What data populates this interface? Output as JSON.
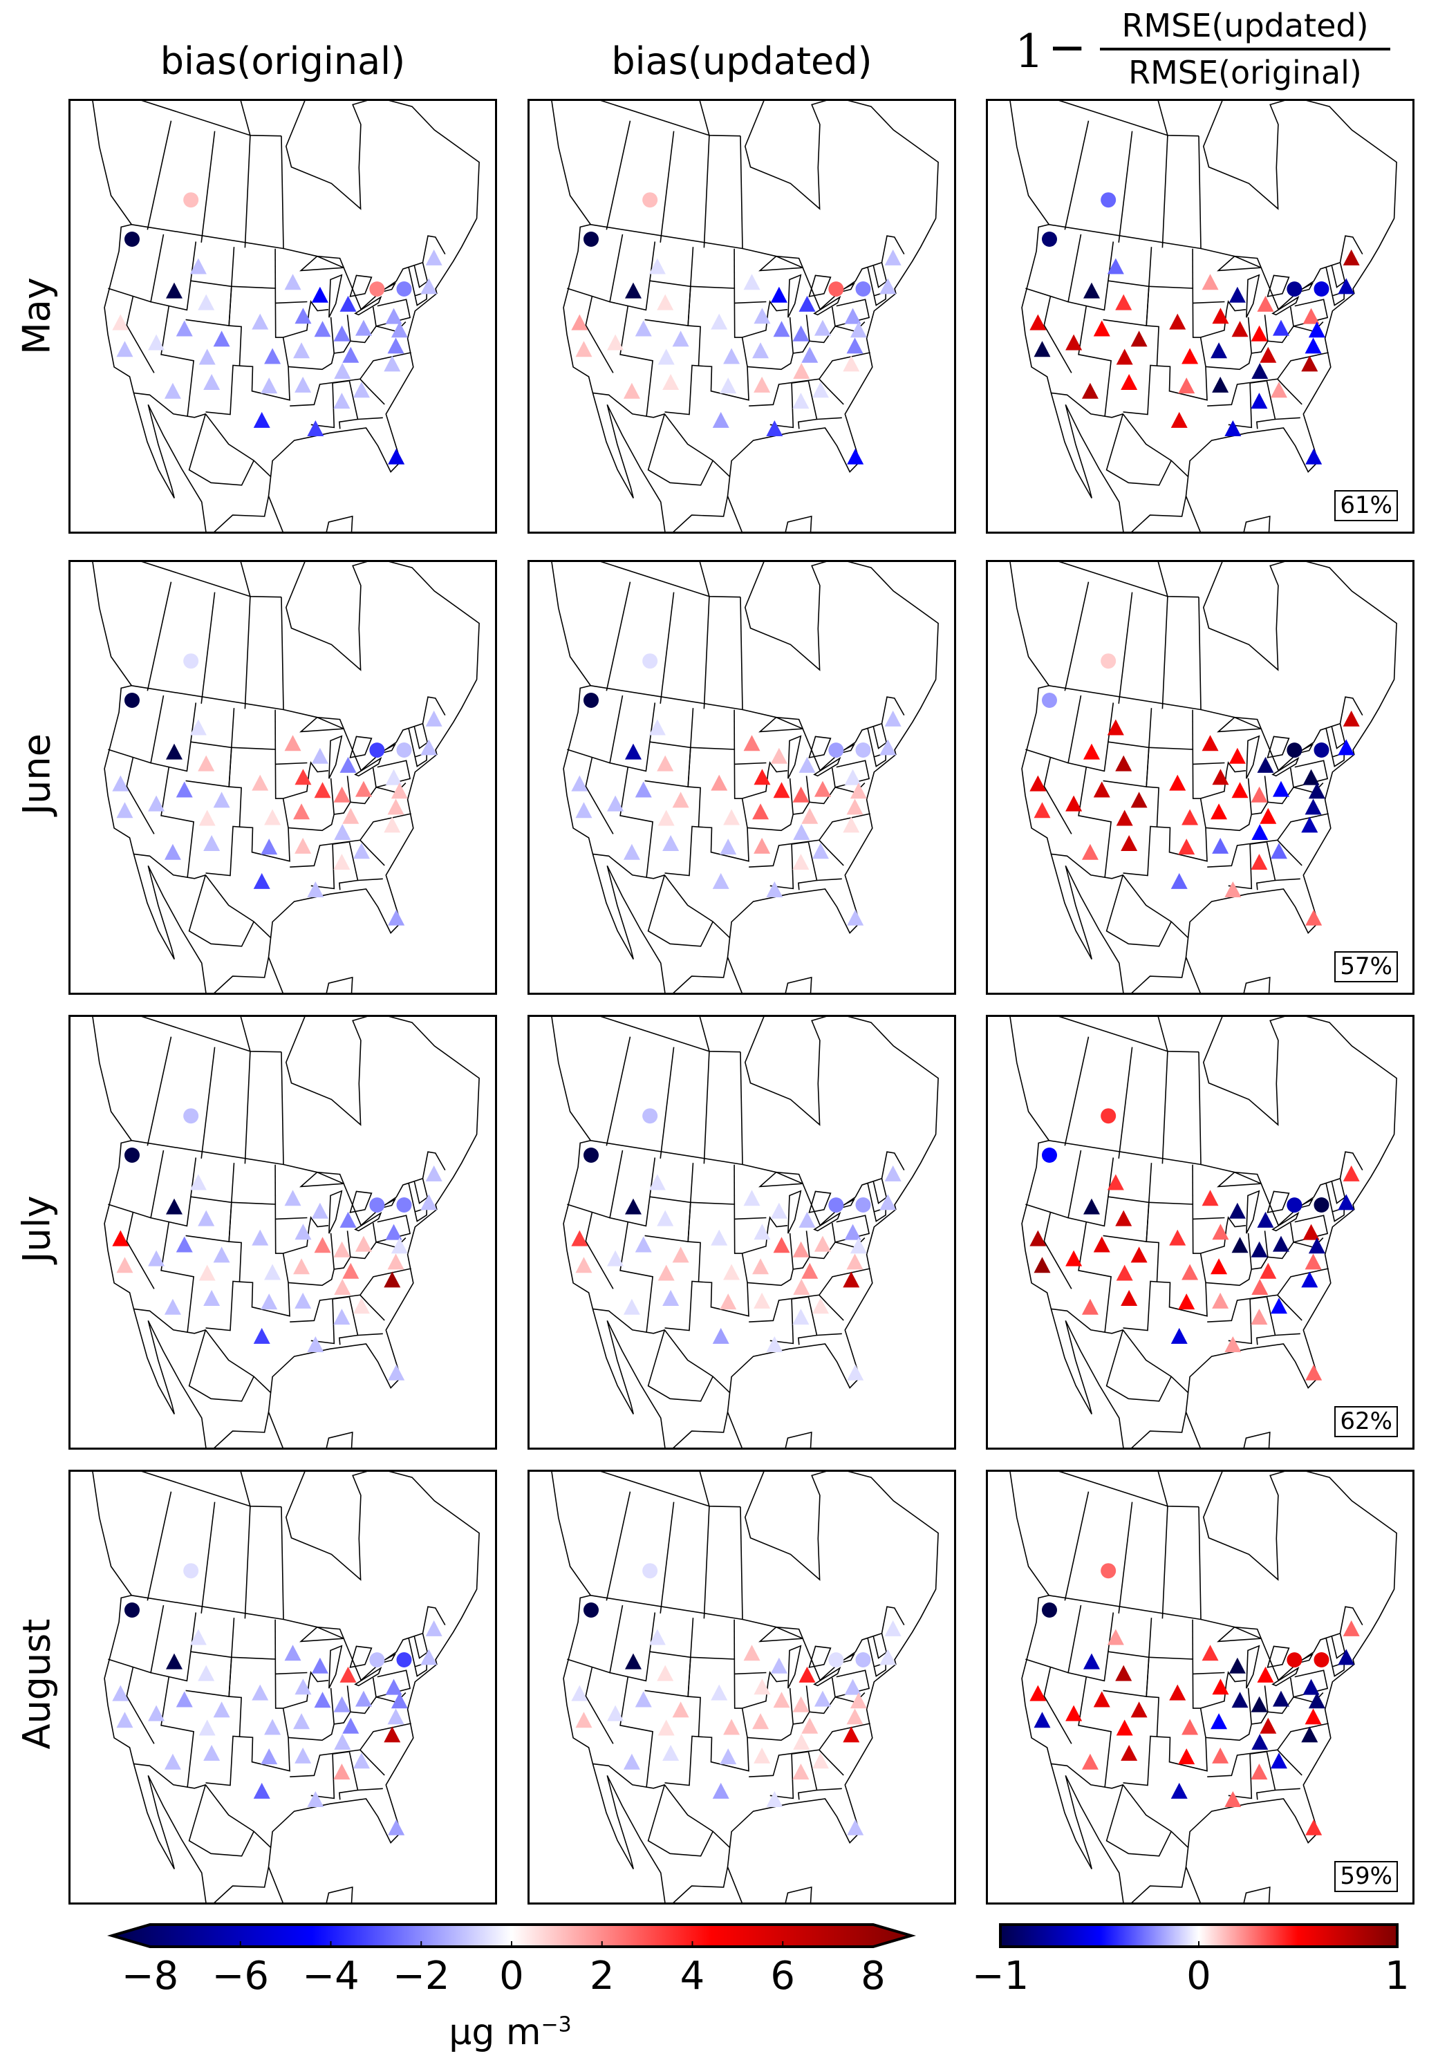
{
  "column_titles": {
    "col1": "bias(original)",
    "col2": "bias(updated)",
    "col3": {
      "prefix_one": "1",
      "minus": "−",
      "numerator": "RMSE(updated)",
      "denominator": "RMSE(original)"
    }
  },
  "row_labels": [
    "May",
    "June",
    "July",
    "August"
  ],
  "improvement_percent": [
    "61%",
    "57%",
    "62%",
    "59%"
  ],
  "colorbar_bias": {
    "range": [
      -8,
      8
    ],
    "extend": "both",
    "ticks": [
      "−8",
      "−6",
      "−4",
      "−2",
      "0",
      "2",
      "4",
      "6",
      "8"
    ],
    "unit_label": "μg m",
    "unit_exponent": "−3",
    "colormap": "seismic",
    "colors": [
      "#00004c",
      "#0000ff",
      "#ffffff",
      "#ff0000",
      "#800000"
    ]
  },
  "colorbar_rmse": {
    "range": [
      -1,
      1
    ],
    "ticks": [
      "−1",
      "0",
      "1"
    ],
    "colormap": "seismic",
    "colors": [
      "#00004c",
      "#0000ff",
      "#ffffff",
      "#ff0000",
      "#800000"
    ]
  },
  "chart_data": {
    "type": "scatter-map",
    "region": "North America",
    "stations": [
      {
        "lon": -122.3,
        "lat": 47.6,
        "marker": "circle"
      },
      {
        "lon": -113,
        "lat": 53,
        "marker": "circle"
      },
      {
        "lon": -113.5,
        "lat": 43.6,
        "marker": "triangle"
      },
      {
        "lon": -121,
        "lat": 39,
        "marker": "triangle"
      },
      {
        "lon": -119.5,
        "lat": 36.5,
        "marker": "triangle"
      },
      {
        "lon": -111,
        "lat": 40,
        "marker": "triangle"
      },
      {
        "lon": -115,
        "lat": 38,
        "marker": "triangle"
      },
      {
        "lon": -105,
        "lat": 39.5,
        "marker": "triangle"
      },
      {
        "lon": -107,
        "lat": 37.5,
        "marker": "triangle"
      },
      {
        "lon": -111.5,
        "lat": 33.5,
        "marker": "triangle"
      },
      {
        "lon": -106,
        "lat": 35,
        "marker": "triangle"
      },
      {
        "lon": -108,
        "lat": 43,
        "marker": "triangle"
      },
      {
        "lon": -110,
        "lat": 46.5,
        "marker": "triangle"
      },
      {
        "lon": -99,
        "lat": 41.5,
        "marker": "triangle"
      },
      {
        "lon": -97,
        "lat": 38,
        "marker": "triangle"
      },
      {
        "lon": -97.5,
        "lat": 35,
        "marker": "triangle"
      },
      {
        "lon": -98.5,
        "lat": 31.5,
        "marker": "triangle"
      },
      {
        "lon": -93.5,
        "lat": 45.5,
        "marker": "triangle"
      },
      {
        "lon": -92,
        "lat": 42,
        "marker": "triangle"
      },
      {
        "lon": -92.5,
        "lat": 38.5,
        "marker": "triangle"
      },
      {
        "lon": -92.5,
        "lat": 35,
        "marker": "triangle"
      },
      {
        "lon": -89,
        "lat": 44,
        "marker": "triangle"
      },
      {
        "lon": -89,
        "lat": 40.5,
        "marker": "triangle"
      },
      {
        "lon": -86,
        "lat": 39.8,
        "marker": "triangle"
      },
      {
        "lon": -84.5,
        "lat": 42.7,
        "marker": "triangle"
      },
      {
        "lon": -82.5,
        "lat": 40,
        "marker": "triangle"
      },
      {
        "lon": -85,
        "lat": 37.5,
        "marker": "triangle"
      },
      {
        "lon": -86.5,
        "lat": 36,
        "marker": "triangle"
      },
      {
        "lon": -87,
        "lat": 33,
        "marker": "triangle"
      },
      {
        "lon": -84,
        "lat": 33.8,
        "marker": "triangle"
      },
      {
        "lon": -79,
        "lat": 35.8,
        "marker": "triangle"
      },
      {
        "lon": -78,
        "lat": 37.5,
        "marker": "triangle"
      },
      {
        "lon": -77.5,
        "lat": 40.5,
        "marker": "triangle"
      },
      {
        "lon": -75,
        "lat": 43,
        "marker": "circle"
      },
      {
        "lon": -79.4,
        "lat": 43.7,
        "marker": "circle"
      },
      {
        "lon": -71,
        "lat": 42.4,
        "marker": "triangle"
      },
      {
        "lon": -69,
        "lat": 45,
        "marker": "triangle"
      },
      {
        "lon": -80.5,
        "lat": 26.5,
        "marker": "triangle"
      },
      {
        "lon": -77,
        "lat": 39,
        "marker": "triangle"
      },
      {
        "lon": -91,
        "lat": 30.5,
        "marker": "triangle"
      }
    ],
    "panels": [
      {
        "row": "May",
        "column": "bias(original)",
        "values": [
          -8,
          1,
          -8,
          0.5,
          -1,
          -1.5,
          -0.5,
          -2,
          -1,
          -1,
          -1,
          -0.5,
          -1,
          -1,
          -2,
          -1,
          -3.5,
          -1,
          -2,
          -1,
          -1,
          -4,
          -2,
          -2,
          -3,
          -1.5,
          -2,
          -1,
          -1,
          -1,
          -1,
          -2,
          -1.5,
          -2,
          2,
          -1,
          -1,
          -4.5,
          -1.5,
          -3
        ]
      },
      {
        "row": "May",
        "column": "bias(updated)",
        "values": [
          -8,
          1,
          -8,
          1.5,
          1,
          -1,
          0.5,
          -1,
          -0.5,
          1,
          0.5,
          0.5,
          -0.5,
          -0.5,
          -1,
          -0.5,
          -1.5,
          -0.5,
          -1,
          -1,
          1,
          -4,
          -2,
          -2,
          -3,
          -1,
          -1.5,
          1,
          -0.5,
          -0.5,
          0.5,
          -2,
          -1.5,
          -2,
          2.5,
          -1,
          -1,
          -4,
          -1,
          -3
        ]
      },
      {
        "row": "May",
        "column": "rmse_improvement",
        "values": [
          -0.9,
          -0.3,
          -1,
          0.6,
          -1,
          0.5,
          0.7,
          0.8,
          0.7,
          0.8,
          0.5,
          0.4,
          -0.3,
          0.7,
          0.5,
          0.3,
          0.6,
          0.2,
          0.6,
          -0.8,
          -1,
          -0.8,
          0.7,
          0.5,
          0.3,
          -0.4,
          0.7,
          -0.9,
          -0.6,
          0.2,
          0.8,
          -0.5,
          0.3,
          -0.6,
          -0.8,
          -0.7,
          0.8,
          -0.6,
          -0.5,
          -0.6
        ]
      },
      {
        "row": "June",
        "column": "bias(original)",
        "values": [
          -8,
          -0.5,
          -8,
          -1,
          -1,
          -2,
          -1,
          -1,
          0.5,
          -1.5,
          -1,
          1,
          -0.5,
          1,
          0.5,
          -2,
          -3,
          1.5,
          3,
          2,
          1,
          -1,
          3,
          2,
          -2,
          2,
          1,
          -1,
          0.5,
          -1,
          0.5,
          1,
          -0.5,
          -1,
          -3,
          -1,
          -1,
          -1.5,
          1,
          -1
        ]
      },
      {
        "row": "June",
        "column": "bias(updated)",
        "values": [
          -8,
          -0.5,
          -6,
          -1,
          -1,
          -1.5,
          -1,
          1,
          0.5,
          -1,
          -1,
          1,
          -0.5,
          1.5,
          0.5,
          -1,
          -1,
          2,
          3.5,
          2.5,
          1.5,
          1,
          3.5,
          2.5,
          -1,
          2,
          1,
          -1,
          0.5,
          -1,
          0.5,
          1,
          -0.5,
          -1,
          -1.5,
          -1,
          -1,
          -1,
          1,
          -1
        ]
      },
      {
        "row": "June",
        "column": "rmse_improvement",
        "values": [
          -0.2,
          0.1,
          0.5,
          0.6,
          0.4,
          0.7,
          0.6,
          0.8,
          0.7,
          0.3,
          0.7,
          0.8,
          0.6,
          0.5,
          0.4,
          0.4,
          -0.3,
          0.6,
          0.7,
          0.5,
          -0.3,
          0.5,
          0.5,
          0.3,
          -0.9,
          -0.5,
          0.5,
          -0.5,
          0.4,
          -0.3,
          -0.7,
          -0.8,
          -1,
          -0.8,
          -1,
          -0.5,
          0.7,
          0.3,
          -0.9,
          0.2
        ]
      },
      {
        "row": "July",
        "column": "bias(original)",
        "values": [
          -8,
          -1,
          -8,
          4,
          1,
          -2,
          -1,
          -1,
          0.5,
          -1,
          -1,
          -1,
          -0.5,
          -1,
          -0.5,
          -1,
          -3,
          -1,
          -1,
          1,
          -1,
          -1,
          2,
          1,
          -2,
          1,
          2,
          1,
          -1,
          0.5,
          7,
          1,
          -2,
          -2,
          -2,
          -1,
          -1,
          -1,
          -0.5,
          -1
        ]
      },
      {
        "row": "July",
        "column": "bias(updated)",
        "values": [
          -8,
          -1,
          -8,
          3,
          1,
          -1,
          -0.5,
          1,
          1,
          -0.5,
          -1,
          -0.5,
          -0.5,
          -0.5,
          0.5,
          1,
          -1.5,
          -0.5,
          -0.5,
          1,
          0.5,
          -0.5,
          2.5,
          1.5,
          -1,
          1,
          2,
          1,
          -0.5,
          0.5,
          6,
          1,
          -1.5,
          -1.5,
          -2,
          -1,
          -1,
          -0.5,
          -0.5,
          -0.5
        ]
      },
      {
        "row": "July",
        "column": "rmse_improvement",
        "values": [
          -0.5,
          0.4,
          -1,
          0.8,
          0.9,
          0.6,
          0.5,
          0.6,
          0.4,
          0.3,
          0.6,
          0.7,
          0.4,
          0.4,
          0.3,
          0.5,
          -0.6,
          0.4,
          0.3,
          0.5,
          0.2,
          -0.9,
          -1,
          -0.9,
          -0.8,
          -0.9,
          0.4,
          0.3,
          0.2,
          -0.5,
          -0.6,
          0.3,
          0.7,
          -1,
          -0.7,
          -0.7,
          0.4,
          0.3,
          -0.8,
          0.2
        ]
      },
      {
        "row": "August",
        "column": "bias(original)",
        "values": [
          -8,
          -0.5,
          -8,
          -1,
          -1,
          -1.5,
          -1,
          -1,
          -0.5,
          -1,
          -1,
          -0.5,
          -0.5,
          -1,
          -1,
          -1.5,
          -2.5,
          -1.5,
          -1,
          -1,
          -1,
          -2,
          -2,
          -1.5,
          3,
          -1.5,
          -2,
          -1,
          1.5,
          -1,
          6,
          -1,
          -2,
          -3,
          -1,
          -1,
          -1,
          -1.5,
          -2,
          -1
        ]
      },
      {
        "row": "August",
        "column": "bias(updated)",
        "values": [
          -8,
          -0.5,
          -8,
          -0.5,
          1,
          -1,
          -0.5,
          1,
          0.5,
          -1,
          -0.5,
          0.5,
          -0.5,
          -0.5,
          1,
          -1,
          -1.5,
          1,
          0.5,
          1,
          0.5,
          -1,
          1,
          1,
          3.5,
          -1,
          1,
          0.5,
          1,
          0.5,
          5,
          1,
          -1,
          -1,
          -0.5,
          -0.5,
          -0.5,
          -1,
          1,
          -0.5
        ]
      },
      {
        "row": "August",
        "column": "rmse_improvement",
        "values": [
          -1,
          0.3,
          -0.7,
          0.5,
          -0.7,
          0.6,
          0.5,
          0.7,
          0.5,
          0.3,
          0.7,
          0.8,
          0.2,
          0.6,
          0.3,
          0.5,
          -0.7,
          0.4,
          0.5,
          -0.5,
          0.3,
          -1,
          -0.9,
          -1,
          0.5,
          -0.9,
          0.7,
          -0.8,
          0.3,
          -0.6,
          -1,
          0.5,
          -0.8,
          0.6,
          0.6,
          -0.8,
          0.3,
          0.4,
          -0.9,
          0.3
        ]
      }
    ]
  }
}
